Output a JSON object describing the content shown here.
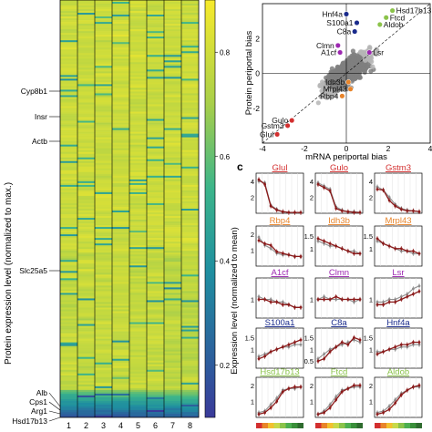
{
  "heatmap": {
    "ylabel": "Protein expression level (normalized to max.)",
    "gene_labels": [
      "Cyp8b1",
      "Insr",
      "Actb",
      "Slc25a5",
      "Alb",
      "Cps1",
      "Arg1",
      "Hsd17b13"
    ],
    "colorbar_ticks": [
      "0.8",
      "0.6",
      "0.4",
      "0.2"
    ],
    "colors": {
      "low": "#2f4b8f",
      "mid": "#21a6a0",
      "high": "#f2e030"
    }
  },
  "chart_data": [
    {
      "type": "heatmap",
      "x": [
        "1",
        "2",
        "3",
        "4",
        "5",
        "6",
        "7",
        "8"
      ],
      "ylabel": "Protein expression level (normalized to max.)",
      "colorbar": {
        "range": [
          0.1,
          0.9
        ],
        "ticks": [
          0.8,
          0.6,
          0.4,
          0.2
        ]
      },
      "labeled_rows": [
        "Cyp8b1",
        "Insr",
        "Actb",
        "Slc25a5",
        "Alb",
        "Cps1",
        "Arg1",
        "Hsd17b13"
      ]
    },
    {
      "type": "scatter",
      "xlabel": "mRNA periportal bias",
      "ylabel": "Protein periportal bias",
      "xlim": [
        -4,
        4
      ],
      "ylim": [
        -4,
        4
      ],
      "x_ticks": [
        "-4",
        "-2",
        "0",
        "2",
        "4"
      ],
      "y_ticks": [
        "2",
        "0",
        "-2"
      ],
      "highlighted": [
        {
          "name": "Hnf4a",
          "x": 0.0,
          "y": 3.4,
          "color": "#1a2b8c"
        },
        {
          "name": "S100a1",
          "x": 0.5,
          "y": 2.9,
          "color": "#1a2b8c"
        },
        {
          "name": "C8a",
          "x": 0.4,
          "y": 2.4,
          "color": "#1a2b8c"
        },
        {
          "name": "Hsd17b13",
          "x": 2.2,
          "y": 3.6,
          "color": "#8bc34a"
        },
        {
          "name": "Ftcd",
          "x": 1.9,
          "y": 3.2,
          "color": "#8bc34a"
        },
        {
          "name": "Aldob",
          "x": 1.6,
          "y": 2.8,
          "color": "#8bc34a"
        },
        {
          "name": "Clmn",
          "x": -0.4,
          "y": 1.6,
          "color": "#9c27b0"
        },
        {
          "name": "A1cf",
          "x": -0.3,
          "y": 1.2,
          "color": "#9c27b0"
        },
        {
          "name": "Lsr",
          "x": 1.1,
          "y": 1.2,
          "color": "#9c27b0"
        },
        {
          "name": "Idh3b",
          "x": 0.1,
          "y": -0.5,
          "color": "#e8842a"
        },
        {
          "name": "Mrpl43",
          "x": 0.2,
          "y": -0.9,
          "color": "#e8842a"
        },
        {
          "name": "Rbp4",
          "x": -0.2,
          "y": -1.3,
          "color": "#e8842a"
        },
        {
          "name": "Gulo",
          "x": -2.6,
          "y": -2.7,
          "color": "#d32f2f"
        },
        {
          "name": "Gstm3",
          "x": -2.8,
          "y": -3.0,
          "color": "#d32f2f"
        },
        {
          "name": "Glul",
          "x": -3.3,
          "y": -3.5,
          "color": "#d32f2f"
        }
      ]
    },
    {
      "type": "line",
      "panel_letter": "c",
      "ylabel": "Expression level (normalized to mean)",
      "x": [
        1,
        2,
        3,
        4,
        5,
        6,
        7,
        8
      ],
      "panels": [
        {
          "name": "Glul",
          "color": "#d32f2f",
          "yticks": [
            "4",
            "2"
          ],
          "ylim": [
            0,
            5
          ],
          "red": [
            4.2,
            3.6,
            0.9,
            0.4,
            0.2,
            0.1,
            0.1,
            0.1
          ],
          "gray": [
            4.0,
            3.8,
            1.0,
            0.5,
            0.2,
            0.1,
            0.1,
            0.1
          ]
        },
        {
          "name": "Gulo",
          "color": "#d32f2f",
          "yticks": [
            "4",
            "2"
          ],
          "ylim": [
            0,
            5
          ],
          "red": [
            3.6,
            3.2,
            2.8,
            0.6,
            0.3,
            0.2,
            0.1,
            0.1
          ],
          "gray": [
            3.8,
            3.4,
            3.0,
            0.8,
            0.4,
            0.2,
            0.2,
            0.1
          ]
        },
        {
          "name": "Gstm3",
          "color": "#d32f2f",
          "yticks": [
            "4",
            "2"
          ],
          "ylim": [
            0,
            5
          ],
          "red": [
            3.0,
            2.9,
            1.6,
            0.9,
            0.5,
            0.3,
            0.3,
            0.2
          ],
          "gray": [
            3.3,
            2.9,
            2.0,
            1.1,
            0.6,
            0.4,
            0.3,
            0.2
          ]
        },
        {
          "name": "Rbp4",
          "color": "#e8842a",
          "yticks": [
            "2",
            "1"
          ],
          "ylim": [
            0,
            2.5
          ],
          "red": [
            1.6,
            1.4,
            1.3,
            0.9,
            0.8,
            0.7,
            0.6,
            0.6
          ],
          "gray": [
            1.8,
            1.3,
            1.1,
            0.8,
            0.7,
            0.7,
            0.6,
            0.6
          ]
        },
        {
          "name": "Idh3b",
          "color": "#e8842a",
          "yticks": [
            "1.5",
            "1"
          ],
          "ylim": [
            0.3,
            1.9
          ],
          "red": [
            1.4,
            1.3,
            1.2,
            1.1,
            1.0,
            0.9,
            0.8,
            0.8
          ],
          "gray": [
            1.3,
            1.2,
            1.1,
            1.1,
            1.0,
            0.9,
            0.9,
            0.8
          ]
        },
        {
          "name": "Mrpl43",
          "color": "#e8842a",
          "yticks": [
            "1.5",
            "1"
          ],
          "ylim": [
            0.3,
            1.9
          ],
          "red": [
            1.4,
            1.2,
            1.1,
            1.0,
            1.0,
            0.9,
            0.9,
            0.8
          ],
          "gray": [
            1.3,
            1.2,
            1.1,
            1.0,
            0.9,
            0.9,
            0.8,
            0.8
          ]
        },
        {
          "name": "A1cf",
          "color": "#9c27b0",
          "yticks": [
            "1"
          ],
          "ylim": [
            0.3,
            1.8
          ],
          "red": [
            1.0,
            1.0,
            0.9,
            0.9,
            0.8,
            0.8,
            0.7,
            0.7
          ],
          "gray": [
            1.1,
            1.0,
            1.0,
            0.9,
            0.9,
            0.8,
            0.7,
            0.7
          ]
        },
        {
          "name": "Clmn",
          "color": "#9c27b0",
          "yticks": [
            "1"
          ],
          "ylim": [
            0.3,
            1.8
          ],
          "red": [
            1.0,
            1.0,
            1.0,
            1.1,
            1.0,
            1.0,
            1.0,
            1.0
          ],
          "gray": [
            1.0,
            1.1,
            1.0,
            1.0,
            1.0,
            1.0,
            0.9,
            1.0
          ]
        },
        {
          "name": "Lsr",
          "color": "#9c27b0",
          "yticks": [
            "1"
          ],
          "ylim": [
            0.3,
            1.8
          ],
          "red": [
            0.8,
            0.8,
            0.9,
            0.9,
            1.0,
            1.1,
            1.2,
            1.3
          ],
          "gray": [
            0.9,
            0.9,
            1.0,
            1.0,
            1.1,
            1.2,
            1.4,
            1.5
          ]
        },
        {
          "name": "S100a1",
          "color": "#1a2b8c",
          "yticks": [
            "1.5",
            "1"
          ],
          "ylim": [
            0.2,
            1.9
          ],
          "red": [
            0.6,
            0.7,
            0.9,
            1.0,
            1.1,
            1.2,
            1.3,
            1.4
          ],
          "gray": [
            0.7,
            0.8,
            0.9,
            1.0,
            1.1,
            1.1,
            1.2,
            1.2
          ]
        },
        {
          "name": "C8a",
          "color": "#1a2b8c",
          "yticks": [
            "1.5",
            "1",
            "0.5"
          ],
          "ylim": [
            0.2,
            1.9
          ],
          "red": [
            0.5,
            0.6,
            0.9,
            1.1,
            1.3,
            1.2,
            1.5,
            1.4
          ],
          "gray": [
            0.6,
            0.8,
            1.0,
            1.1,
            1.2,
            1.3,
            1.4,
            1.3
          ]
        },
        {
          "name": "Hnf4a",
          "color": "#1a2b8c",
          "yticks": [
            "1.5",
            "1"
          ],
          "ylim": [
            0.2,
            1.9
          ],
          "red": [
            0.8,
            0.9,
            1.0,
            1.1,
            1.2,
            1.2,
            1.3,
            1.3
          ],
          "gray": [
            0.9,
            0.9,
            1.0,
            1.0,
            1.1,
            1.1,
            1.2,
            1.2
          ]
        },
        {
          "name": "Hsd17b13",
          "color": "#8bc34a",
          "yticks": [
            "2",
            "1"
          ],
          "ylim": [
            0,
            2.5
          ],
          "red": [
            0.2,
            0.3,
            0.6,
            1.0,
            1.6,
            1.8,
            1.9,
            1.9
          ],
          "gray": [
            0.3,
            0.4,
            0.8,
            1.2,
            1.7,
            1.8,
            1.8,
            1.9
          ]
        },
        {
          "name": "Ftcd",
          "color": "#8bc34a",
          "yticks": [
            "2",
            "1"
          ],
          "ylim": [
            0,
            2.5
          ],
          "red": [
            0.2,
            0.3,
            0.6,
            1.1,
            1.6,
            1.8,
            2.0,
            2.0
          ],
          "gray": [
            0.2,
            0.4,
            0.8,
            1.3,
            1.7,
            1.8,
            1.9,
            1.9
          ]
        },
        {
          "name": "Aldob",
          "color": "#8bc34a",
          "yticks": [
            "2",
            "1"
          ],
          "ylim": [
            0,
            2.5
          ],
          "red": [
            0.2,
            0.3,
            0.5,
            0.9,
            1.4,
            1.7,
            1.9,
            2.0
          ],
          "gray": [
            0.3,
            0.4,
            0.7,
            1.1,
            1.5,
            1.7,
            1.9,
            1.9
          ]
        }
      ]
    }
  ]
}
